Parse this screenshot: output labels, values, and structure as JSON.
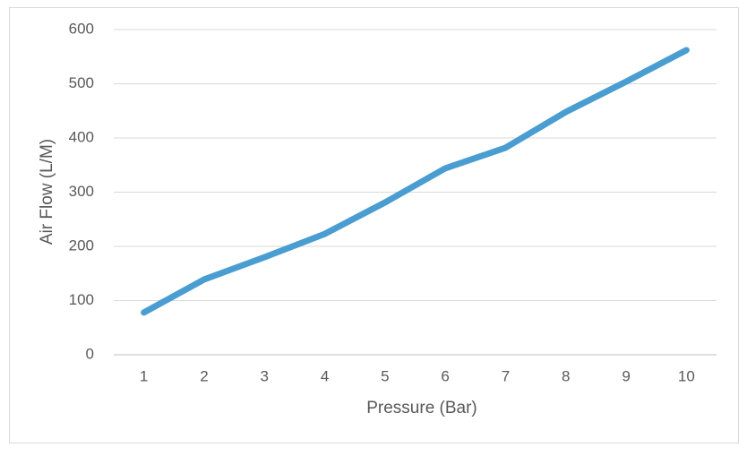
{
  "chart_data": {
    "type": "line",
    "x_label": "Pressure (Bar)",
    "y_label": "Air Flow (L/M)",
    "categories": [
      "1",
      "2",
      "3",
      "4",
      "5",
      "6",
      "7",
      "8",
      "9",
      "10"
    ],
    "values": [
      78,
      139,
      180,
      223,
      281,
      344,
      382,
      448,
      504,
      562
    ],
    "color": "#4a9dd1",
    "ylim": [
      0,
      600
    ],
    "yticks": [
      0,
      100,
      200,
      300,
      400,
      500,
      600
    ],
    "grid": true
  }
}
